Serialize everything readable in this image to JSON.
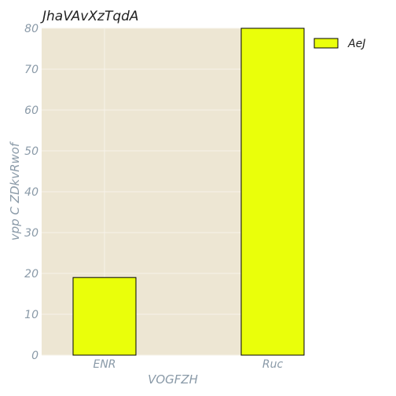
{
  "chart_data": {
    "type": "bar",
    "title": "JhaVAvXzTqdA",
    "xlabel": "VOGFZH",
    "ylabel": "vpp C ZDkvRwof",
    "categories": [
      "ENR",
      "Ruc"
    ],
    "series": [
      {
        "name": "AeJ",
        "values": [
          19,
          80
        ],
        "color": "#eaff0a"
      }
    ],
    "ylim": [
      0,
      80
    ],
    "yticks": [
      0,
      10,
      20,
      30,
      40,
      50,
      60,
      70,
      80
    ],
    "grid": true,
    "legend": "right, outside",
    "colors": {
      "plot_background": "#ede6d3",
      "grid": "#f7f3ea",
      "bar_edge": "#000000"
    }
  }
}
